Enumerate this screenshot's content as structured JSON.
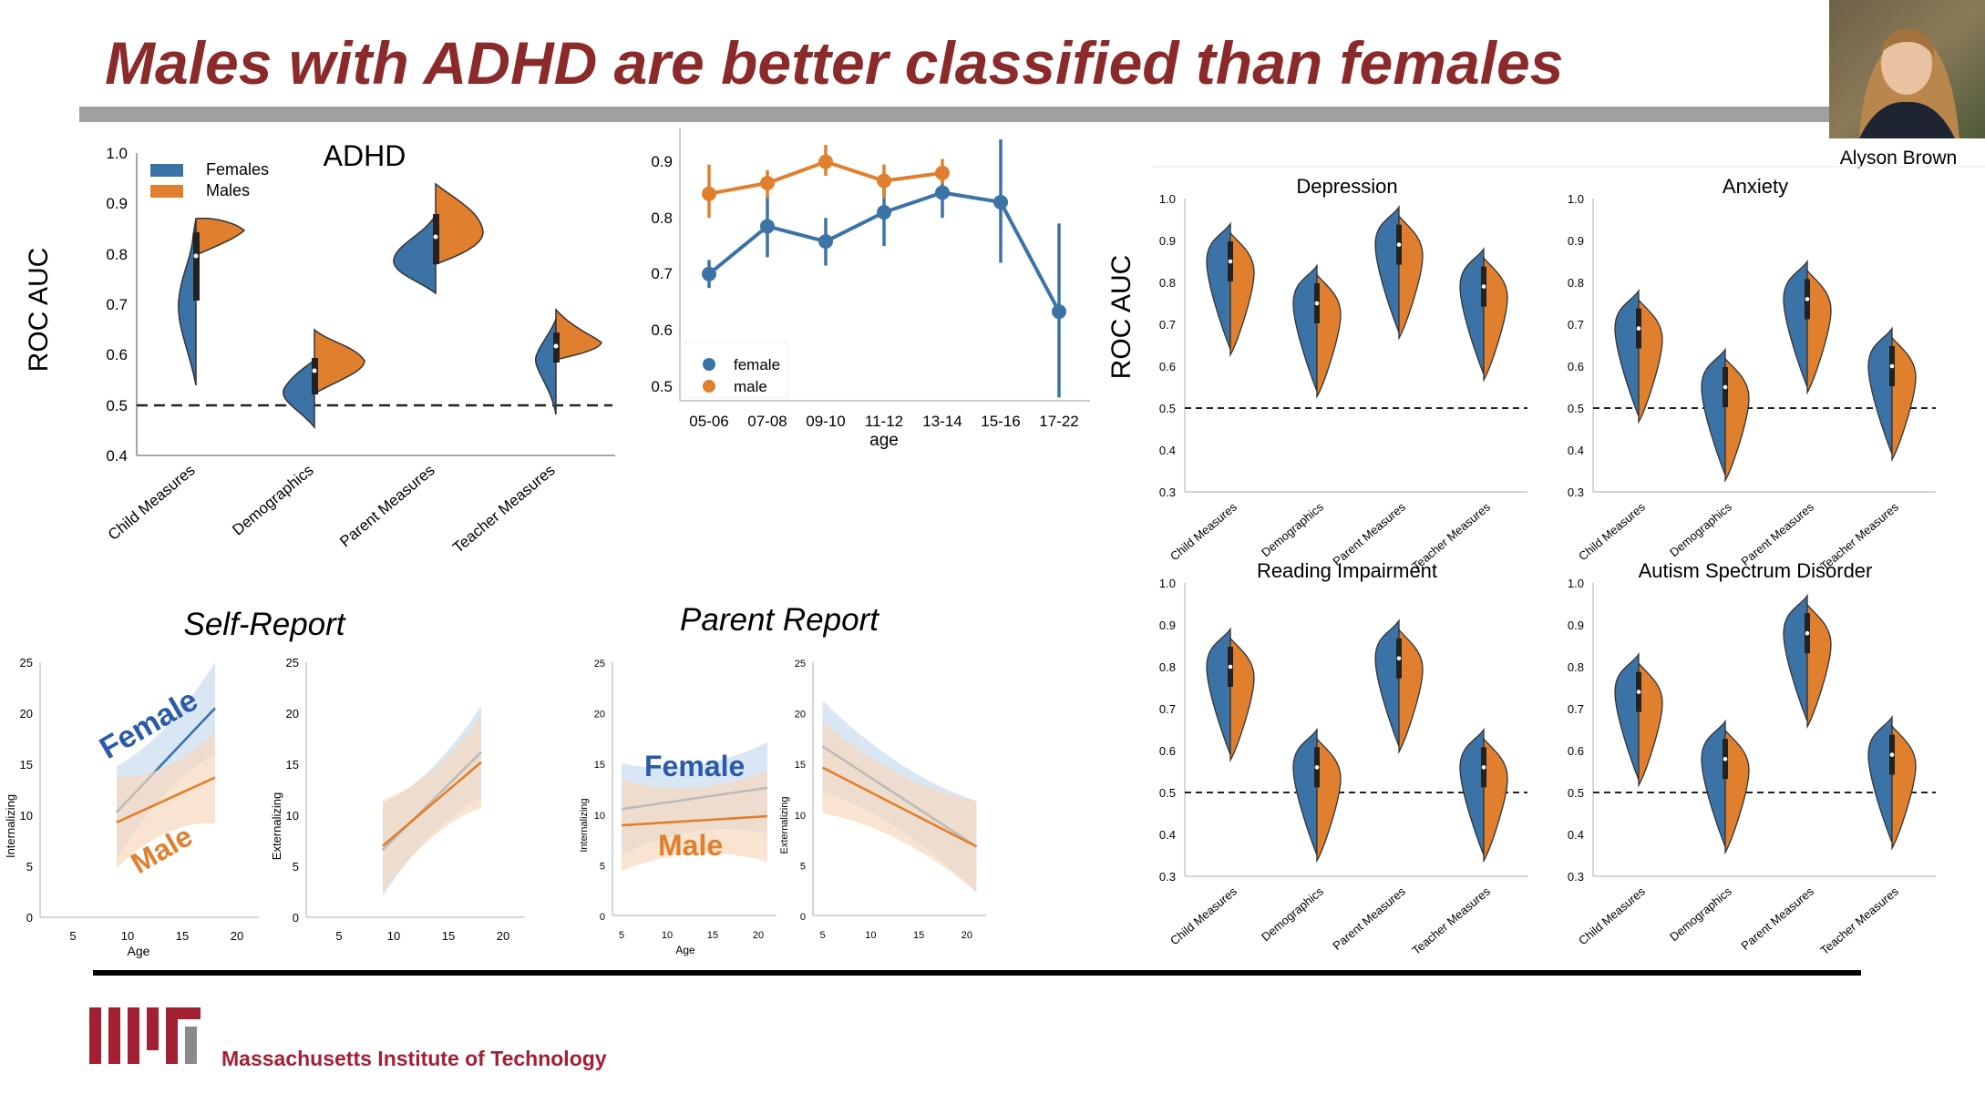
{
  "slide": {
    "title": "Males with ADHD are better classified than females",
    "presenter": "Alyson Brown",
    "institution": "Massachusetts Institute of Technology",
    "colors": {
      "title": "#8b2a2a",
      "female": "#3b73a6",
      "male": "#e07f2d",
      "female_light": "#c9dcee",
      "male_light": "#f6d9bd",
      "mit": "#a31f34"
    }
  },
  "adhd": {
    "title": "ADHD",
    "ylabel": "ROC AUC",
    "yticks": [
      "0.4",
      "0.5",
      "0.6",
      "0.7",
      "0.8",
      "0.9",
      "1.0"
    ],
    "legend": [
      "Females",
      "Males"
    ],
    "categories": [
      "Child Measures",
      "Demographics",
      "Parent Measures",
      "Teacher Measures"
    ]
  },
  "age_plot": {
    "xlabel": "age",
    "xticks": [
      "05-06",
      "07-08",
      "09-10",
      "11-12",
      "13-14",
      "15-16",
      "17-22"
    ],
    "yticks": [
      "0.5",
      "0.6",
      "0.7",
      "0.8",
      "0.9"
    ],
    "legend": [
      "female",
      "male"
    ]
  },
  "small_violins": {
    "ylabel": "ROC AUC",
    "yticks": [
      "0.3",
      "0.4",
      "0.5",
      "0.6",
      "0.7",
      "0.8",
      "0.9",
      "1.0"
    ],
    "categories": [
      "Child Measures",
      "Demographics",
      "Parent Measures",
      "Teacher Measures"
    ],
    "panels": [
      "Depression",
      "Anxiety",
      "Reading Impairment",
      "Autism Spectrum Disorder"
    ]
  },
  "regressions": {
    "self_report_title": "Self-Report",
    "parent_report_title": "Parent Report",
    "female_label": "Female",
    "male_label": "Male",
    "ylabel_int": "Internalizing",
    "ylabel_ext": "Externalizing",
    "xlabel": "Age",
    "yticks": [
      "0",
      "5",
      "10",
      "15",
      "20",
      "25"
    ],
    "xticks_self": [
      "5",
      "10",
      "15",
      "20"
    ],
    "xticks_parent": [
      "5",
      "10",
      "15",
      "20"
    ]
  },
  "chart_data": [
    {
      "type": "violin",
      "title": "ADHD",
      "ylabel": "ROC AUC",
      "ylim": [
        0.4,
        1.0
      ],
      "categories": [
        "Child Measures",
        "Demographics",
        "Parent Measures",
        "Teacher Measures"
      ],
      "series": [
        {
          "name": "Females",
          "medians": [
            0.79,
            0.57,
            0.82,
            0.61
          ],
          "ranges": [
            [
              0.54,
              0.87
            ],
            [
              0.46,
              0.62
            ],
            [
              0.72,
              0.88
            ],
            [
              0.48,
              0.68
            ]
          ]
        },
        {
          "name": "Males",
          "medians": [
            0.79,
            0.57,
            0.84,
            0.62
          ],
          "ranges": [
            [
              0.77,
              0.88
            ],
            [
              0.54,
              0.65
            ],
            [
              0.78,
              0.94
            ],
            [
              0.55,
              0.69
            ]
          ]
        }
      ],
      "reference_line": 0.5
    },
    {
      "type": "line",
      "xlabel": "age",
      "categories": [
        "05-06",
        "07-08",
        "09-10",
        "11-12",
        "13-14",
        "15-16",
        "17-22"
      ],
      "ylim": [
        0.47,
        0.93
      ],
      "series": [
        {
          "name": "female",
          "values": [
            0.7,
            0.785,
            0.758,
            0.81,
            0.845,
            0.828,
            0.633
          ],
          "ci": [
            [
              0.675,
              0.725
            ],
            [
              0.73,
              0.84
            ],
            [
              0.715,
              0.8
            ],
            [
              0.75,
              0.87
            ],
            [
              0.8,
              0.89
            ],
            [
              0.72,
              0.94
            ],
            [
              0.48,
              0.79
            ]
          ]
        },
        {
          "name": "male",
          "values": [
            0.843,
            0.862,
            0.9,
            0.866,
            0.88,
            null,
            null
          ],
          "ci": [
            [
              0.8,
              0.895
            ],
            [
              0.835,
              0.885
            ],
            [
              0.875,
              0.93
            ],
            [
              0.835,
              0.895
            ],
            [
              0.86,
              0.905
            ],
            null,
            null
          ]
        }
      ]
    },
    {
      "type": "violin",
      "title": "Depression",
      "ylim": [
        0.3,
        1.0
      ],
      "categories": [
        "Child Measures",
        "Demographics",
        "Parent Measures",
        "Teacher Measures"
      ],
      "series": [
        {
          "name": "Females",
          "medians": [
            0.85,
            0.75,
            0.89,
            0.79
          ]
        },
        {
          "name": "Males",
          "medians": [
            0.85,
            0.75,
            0.89,
            0.79
          ]
        }
      ],
      "reference_line": 0.5
    },
    {
      "type": "violin",
      "title": "Anxiety",
      "ylim": [
        0.3,
        1.0
      ],
      "categories": [
        "Child Measures",
        "Demographics",
        "Parent Measures",
        "Teacher Measures"
      ],
      "series": [
        {
          "name": "Females",
          "medians": [
            0.69,
            0.55,
            0.76,
            0.6
          ]
        },
        {
          "name": "Males",
          "medians": [
            0.69,
            0.55,
            0.76,
            0.6
          ]
        }
      ],
      "reference_line": 0.5
    },
    {
      "type": "violin",
      "title": "Reading Impairment",
      "ylim": [
        0.3,
        1.0
      ],
      "categories": [
        "Child Measures",
        "Demographics",
        "Parent Measures",
        "Teacher Measures"
      ],
      "series": [
        {
          "name": "Females",
          "medians": [
            0.8,
            0.56,
            0.82,
            0.56
          ]
        },
        {
          "name": "Males",
          "medians": [
            0.8,
            0.56,
            0.82,
            0.56
          ]
        }
      ],
      "reference_line": 0.5
    },
    {
      "type": "violin",
      "title": "Autism Spectrum Disorder",
      "ylim": [
        0.3,
        1.0
      ],
      "categories": [
        "Child Measures",
        "Demographics",
        "Parent Measures",
        "Teacher Measures"
      ],
      "series": [
        {
          "name": "Females",
          "medians": [
            0.74,
            0.58,
            0.88,
            0.59
          ]
        },
        {
          "name": "Males",
          "medians": [
            0.74,
            0.58,
            0.88,
            0.59
          ]
        }
      ],
      "reference_line": 0.5
    },
    {
      "type": "line",
      "title": "Self-Report",
      "ylabel": "Internalizing",
      "xlabel": "Age",
      "ylim": [
        0,
        25
      ],
      "series": [
        {
          "name": "Female",
          "x": [
            9,
            18
          ],
          "values": [
            10.3,
            20.5
          ]
        },
        {
          "name": "Male",
          "x": [
            9,
            18
          ],
          "values": [
            9.3,
            13.7
          ]
        }
      ]
    },
    {
      "type": "line",
      "title": "Self-Report",
      "ylabel": "Externalizing",
      "ylim": [
        0,
        25
      ],
      "series": [
        {
          "x": [
            9,
            18
          ],
          "values": [
            6.6,
            16.2
          ]
        },
        {
          "x": [
            9,
            18
          ],
          "values": [
            7.0,
            15.2
          ]
        }
      ]
    },
    {
      "type": "line",
      "title": "Parent Report",
      "ylabel": "Internalizing",
      "xlabel": "Age",
      "ylim": [
        0,
        25
      ],
      "series": [
        {
          "name": "Female",
          "x": [
            5,
            21
          ],
          "values": [
            10.5,
            12.6
          ]
        },
        {
          "name": "Male",
          "x": [
            5,
            21
          ],
          "values": [
            8.9,
            9.8
          ]
        }
      ]
    },
    {
      "type": "line",
      "title": "Parent Report",
      "ylabel": "Externalizing",
      "ylim": [
        0,
        25
      ],
      "series": [
        {
          "x": [
            5,
            21
          ],
          "values": [
            16.7,
            6.8
          ]
        },
        {
          "x": [
            5,
            21
          ],
          "values": [
            14.6,
            6.8
          ]
        }
      ]
    }
  ]
}
